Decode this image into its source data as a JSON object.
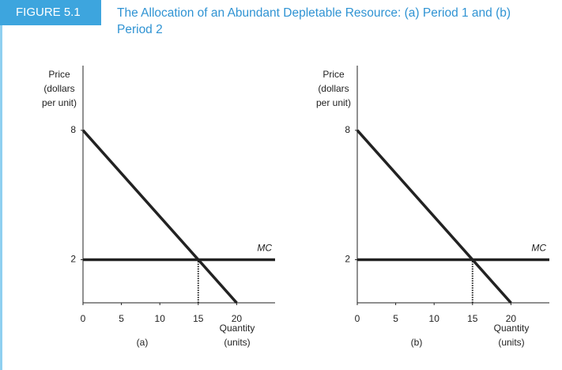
{
  "header": {
    "label": "FIGURE 5.1",
    "title": "The Allocation of an Abundant Depletable Resource: (a) Period 1 and (b) Period 2"
  },
  "chart_data": [
    {
      "type": "line",
      "caption": "(a)",
      "ylabel": [
        "Price",
        "(dollars",
        "per unit)"
      ],
      "xlabel": [
        "Quantity",
        "(units)"
      ],
      "xlim": [
        0,
        25
      ],
      "ylim": [
        0,
        11
      ],
      "xticks": [
        0,
        5,
        10,
        15,
        20
      ],
      "yticks": [
        2,
        8
      ],
      "grid": false,
      "series": [
        {
          "x": [
            0,
            20
          ],
          "values": [
            8,
            0
          ],
          "color": "#222222"
        },
        {
          "name": "MC",
          "x": [
            0,
            25
          ],
          "values": [
            2,
            2
          ],
          "color": "#222222"
        },
        {
          "x": [
            15,
            15
          ],
          "values": [
            0,
            2
          ],
          "color": "#222222",
          "style": "dotted"
        }
      ]
    },
    {
      "type": "line",
      "caption": "(b)",
      "ylabel": [
        "Price",
        "(dollars",
        "per unit)"
      ],
      "xlabel": [
        "Quantity",
        "(units)"
      ],
      "xlim": [
        0,
        25
      ],
      "ylim": [
        0,
        11
      ],
      "xticks": [
        0,
        5,
        10,
        15,
        20
      ],
      "yticks": [
        2,
        8
      ],
      "grid": false,
      "series": [
        {
          "x": [
            0,
            20
          ],
          "values": [
            8,
            0
          ],
          "color": "#222222"
        },
        {
          "name": "MC",
          "x": [
            0,
            25
          ],
          "values": [
            2,
            2
          ],
          "color": "#222222"
        },
        {
          "x": [
            15,
            15
          ],
          "values": [
            0,
            2
          ],
          "color": "#222222",
          "style": "dotted"
        }
      ]
    }
  ]
}
